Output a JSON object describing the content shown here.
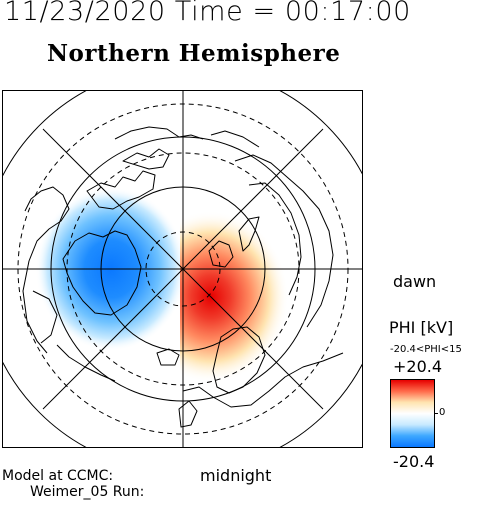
{
  "header": {
    "time_line": "11/23/2020 Time = 00:17:00",
    "title": "Northern Hemisphere"
  },
  "map": {
    "projection": "north polar stereographic",
    "coastline_color": "#000000",
    "positive_color": "#e02020",
    "negative_color": "#1a8cff"
  },
  "labels": {
    "dawn": "dawn",
    "midnight": "midnight",
    "model_line1": "Model at CCMC:",
    "model_line2": "Weimer_05 Run:"
  },
  "colorbar": {
    "title": "PHI [kV]",
    "range_text": "-20.4<PHI<15",
    "max_label": "+20.4",
    "zero_label": "0",
    "min_label": "-20.4",
    "colors": [
      "#e60000",
      "#ff6a4a",
      "#ffe4b0",
      "#ffffff",
      "#c8eaff",
      "#3ea8ff",
      "#0a78ff"
    ]
  }
}
